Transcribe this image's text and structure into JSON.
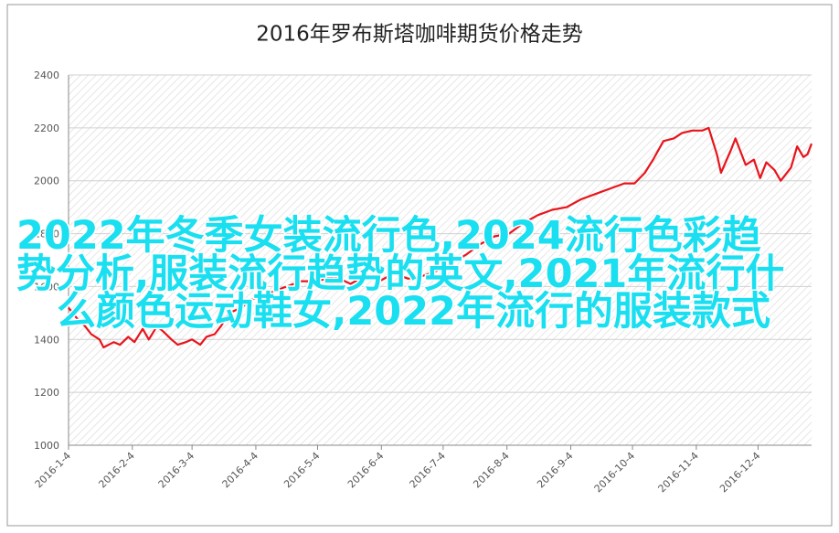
{
  "chart_data": {
    "type": "line",
    "title": "2016年罗布斯塔咖啡期货价格走势",
    "x": [
      "2016-1-4",
      "2016-1-8",
      "2016-1-12",
      "2016-1-15",
      "2016-1-19",
      "2016-1-21",
      "2016-1-26",
      "2016-1-29",
      "2016-2-2",
      "2016-2-5",
      "2016-2-9",
      "2016-2-12",
      "2016-2-16",
      "2016-2-19",
      "2016-2-23",
      "2016-2-26",
      "2016-3-1",
      "2016-3-4",
      "2016-3-8",
      "2016-3-11",
      "2016-3-15",
      "2016-3-18",
      "2016-3-22",
      "2016-3-28",
      "2016-4-1",
      "2016-4-6",
      "2016-4-12",
      "2016-4-19",
      "2016-4-26",
      "2016-5-4",
      "2016-5-12",
      "2016-5-20",
      "2016-5-27",
      "2016-6-3",
      "2016-6-10",
      "2016-6-17",
      "2016-6-24",
      "2016-7-1",
      "2016-7-8",
      "2016-7-15",
      "2016-7-22",
      "2016-7-29",
      "2016-8-5",
      "2016-8-12",
      "2016-8-19",
      "2016-8-26",
      "2016-9-2",
      "2016-9-9",
      "2016-9-16",
      "2016-9-23",
      "2016-9-30",
      "2016-10-5",
      "2016-10-10",
      "2016-10-14",
      "2016-10-19",
      "2016-10-24",
      "2016-10-28",
      "2016-11-2",
      "2016-11-7",
      "2016-11-10",
      "2016-11-14",
      "2016-11-16",
      "2016-11-21",
      "2016-11-23",
      "2016-11-28",
      "2016-12-2",
      "2016-12-5",
      "2016-12-8",
      "2016-12-12",
      "2016-12-15",
      "2016-12-20",
      "2016-12-23",
      "2016-12-26",
      "2016-12-28",
      "2016-12-30"
    ],
    "series": [
      {
        "color": "#e8141b",
        "values": [
          1520,
          1480,
          1450,
          1420,
          1400,
          1370,
          1390,
          1380,
          1410,
          1390,
          1440,
          1400,
          1450,
          1430,
          1400,
          1380,
          1390,
          1400,
          1380,
          1410,
          1420,
          1450,
          1500,
          1520,
          1550,
          1560,
          1580,
          1600,
          1620,
          1620,
          1640,
          1610,
          1640,
          1620,
          1650,
          1630,
          1640,
          1660,
          1690,
          1720,
          1760,
          1790,
          1800,
          1840,
          1870,
          1890,
          1900,
          1930,
          1950,
          1970,
          1990,
          1990,
          2030,
          2080,
          2150,
          2160,
          2180,
          2190,
          2190,
          2200,
          2100,
          2030,
          2120,
          2160,
          2060,
          2080,
          2010,
          2070,
          2040,
          2000,
          2050,
          2130,
          2090,
          2100,
          2140
        ]
      }
    ],
    "xlim": [
      "2016-1-4",
      "2016-12-30"
    ],
    "xticks": [
      "2016-1-4",
      "2016-2-4",
      "2016-3-4",
      "2016-4-4",
      "2016-5-4",
      "2016-6-4",
      "2016-7-4",
      "2016-8-4",
      "2016-9-4",
      "2016-10-4",
      "2016-11-4",
      "2016-12-4"
    ],
    "ylim": [
      1000,
      2400
    ],
    "yticks": [
      1000,
      1200,
      1400,
      1600,
      1800,
      2000,
      2200,
      2400
    ],
    "grid": true
  },
  "overlay_text": [
    "2022年冬季女装流行色,2024流行色彩趋",
    "势分析,服装流行趋势的英文,2021年流行什",
    "么颜色运动鞋女,2022年流行的服装款式"
  ]
}
